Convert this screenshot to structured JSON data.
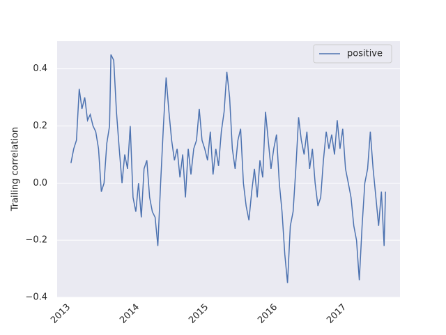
{
  "chart_data": {
    "type": "line",
    "y_label": "Trailing correlation",
    "legend": "upper right",
    "grid": "y",
    "xlim": [
      2012.95,
      2017.92
    ],
    "xticks": [
      2013,
      2014,
      2015,
      2016,
      2017
    ],
    "ylim": [
      -0.4,
      0.497
    ],
    "yticks": [
      0.4,
      0.2,
      {
        "value": 0,
        "label": "0.0"
      },
      {
        "value": -0.2,
        "label": "−0.2"
      },
      {
        "value": -0.4,
        "label": "−0.4"
      }
    ],
    "x": [
      2013.15,
      2013.19,
      2013.23,
      2013.27,
      2013.31,
      2013.35,
      2013.39,
      2013.43,
      2013.47,
      2013.51,
      2013.55,
      2013.59,
      2013.63,
      2013.67,
      2013.71,
      2013.73,
      2013.77,
      2013.81,
      2013.85,
      2013.89,
      2013.93,
      2013.97,
      2014.01,
      2014.05,
      2014.09,
      2014.13,
      2014.17,
      2014.21,
      2014.25,
      2014.29,
      2014.33,
      2014.37,
      2014.41,
      2014.45,
      2014.49,
      2014.53,
      2014.57,
      2014.61,
      2014.65,
      2014.69,
      2014.73,
      2014.77,
      2014.81,
      2014.85,
      2014.89,
      2014.93,
      2014.97,
      2015.01,
      2015.05,
      2015.09,
      2015.13,
      2015.17,
      2015.21,
      2015.25,
      2015.29,
      2015.33,
      2015.37,
      2015.41,
      2015.45,
      2015.49,
      2015.53,
      2015.57,
      2015.61,
      2015.65,
      2015.69,
      2015.73,
      2015.77,
      2015.81,
      2015.85,
      2015.89,
      2015.93,
      2015.97,
      2016.01,
      2016.05,
      2016.09,
      2016.13,
      2016.17,
      2016.21,
      2016.25,
      2016.29,
      2016.33,
      2016.37,
      2016.41,
      2016.45,
      2016.49,
      2016.53,
      2016.57,
      2016.61,
      2016.65,
      2016.69,
      2016.73,
      2016.77,
      2016.81,
      2016.85,
      2016.89,
      2016.93,
      2016.97,
      2017.01,
      2017.05,
      2017.09,
      2017.13,
      2017.17,
      2017.21,
      2017.25,
      2017.29,
      2017.33,
      2017.37,
      2017.41,
      2017.45,
      2017.49,
      2017.53,
      2017.57,
      2017.61,
      2017.65,
      2017.69,
      2017.71
    ],
    "series": [
      {
        "name": "positive",
        "color": "#4c72b0",
        "values": [
          0.07,
          0.12,
          0.15,
          0.33,
          0.26,
          0.3,
          0.22,
          0.24,
          0.2,
          0.18,
          0.12,
          -0.03,
          0.0,
          0.14,
          0.2,
          0.45,
          0.43,
          0.25,
          0.12,
          0.0,
          0.1,
          0.05,
          0.2,
          -0.05,
          -0.1,
          0.0,
          -0.12,
          0.05,
          0.08,
          -0.05,
          -0.1,
          -0.12,
          -0.22,
          0.0,
          0.2,
          0.37,
          0.25,
          0.15,
          0.08,
          0.12,
          0.02,
          0.1,
          -0.05,
          0.12,
          0.03,
          0.12,
          0.15,
          0.26,
          0.15,
          0.12,
          0.08,
          0.18,
          0.03,
          0.12,
          0.06,
          0.18,
          0.25,
          0.39,
          0.3,
          0.12,
          0.05,
          0.15,
          0.19,
          0.0,
          -0.08,
          -0.13,
          -0.03,
          0.05,
          -0.05,
          0.08,
          0.02,
          0.25,
          0.15,
          0.05,
          0.12,
          0.17,
          0.0,
          -0.1,
          -0.25,
          -0.35,
          -0.15,
          -0.1,
          0.05,
          0.23,
          0.15,
          0.1,
          0.18,
          0.05,
          0.12,
          0.0,
          -0.08,
          -0.05,
          0.08,
          0.18,
          0.12,
          0.17,
          0.1,
          0.22,
          0.12,
          0.19,
          0.05,
          0.0,
          -0.05,
          -0.15,
          -0.2,
          -0.34,
          -0.15,
          0.0,
          0.05,
          0.18,
          0.05,
          -0.05,
          -0.15,
          -0.03,
          -0.22,
          -0.03
        ]
      }
    ]
  }
}
